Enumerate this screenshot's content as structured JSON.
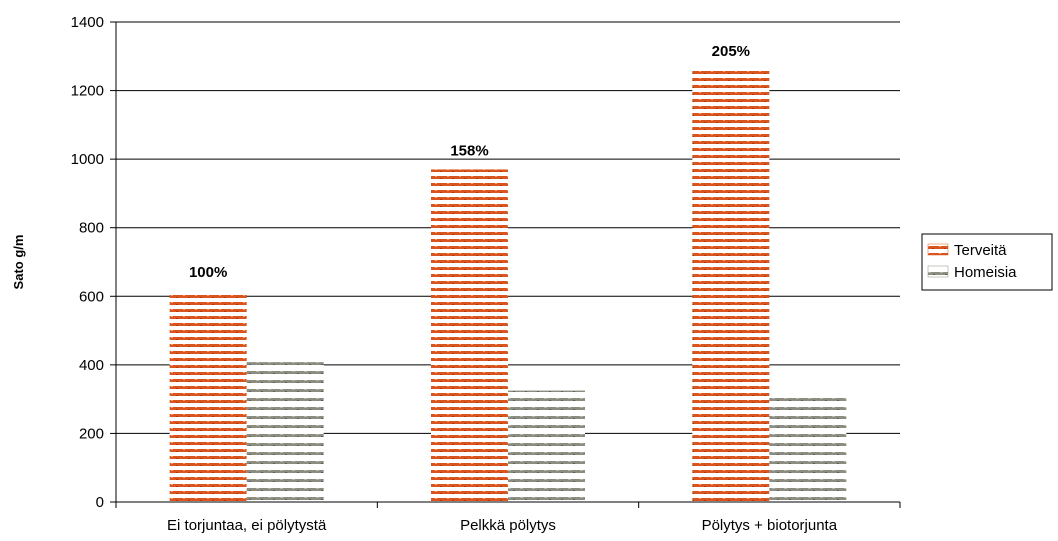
{
  "chart_data": {
    "type": "bar",
    "title": "",
    "xlabel": "",
    "ylabel": "Sato g/m",
    "ylim": [
      0,
      1400
    ],
    "yticks": [
      0,
      200,
      400,
      600,
      800,
      1000,
      1200,
      1400
    ],
    "grid": true,
    "legend_position": "right",
    "categories": [
      "Ei torjuntaa, ei pölytystä",
      "Pelkkä pölytys",
      "Pölytys + biotorjunta"
    ],
    "series": [
      {
        "name": "Terveitä",
        "values": [
          615,
          970,
          1260
        ],
        "color": "#d9541e"
      },
      {
        "name": "Homeisia",
        "values": [
          408,
          325,
          313
        ],
        "color": "#8c8c80"
      }
    ],
    "data_labels": [
      "100%",
      "158%",
      "205%"
    ]
  }
}
